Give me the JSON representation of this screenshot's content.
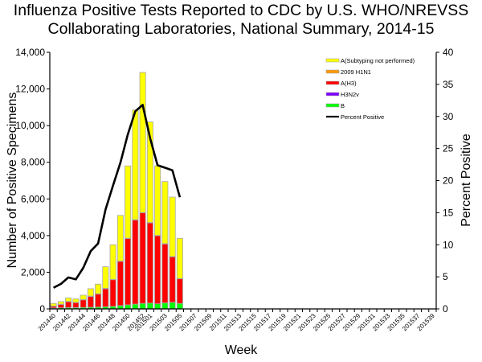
{
  "chart_data": {
    "type": "bar",
    "stacked": true,
    "title": "Influenza Positive Tests Reported to CDC by U.S. WHO/NREVSS Collaborating Laboratories, National Summary, 2014-15",
    "title_lines": [
      "Influenza Positive Tests Reported to CDC by U.S. WHO/NREVSS",
      "Collaborating Laboratories, National Summary, 2014-15"
    ],
    "xlabel": "Week",
    "ylabel": "Number of Positive Specimens",
    "y2label": "Percent Positive",
    "ylim": [
      0,
      14000
    ],
    "y2lim": [
      0,
      40
    ],
    "yticks": [
      0,
      2000,
      4000,
      6000,
      8000,
      10000,
      12000,
      14000
    ],
    "ytick_labels": [
      "0",
      "2,000",
      "4,000",
      "6,000",
      "8,000",
      "10,000",
      "12,000",
      "14,000"
    ],
    "y2ticks": [
      0,
      5,
      10,
      15,
      20,
      25,
      30,
      35,
      40
    ],
    "y2tick_labels": [
      "0",
      "5",
      "10",
      "15",
      "20",
      "25",
      "30",
      "35",
      "40"
    ],
    "grid": false,
    "legend_position": "top-right",
    "categories": [
      "201440",
      "201441",
      "201442",
      "201443",
      "201444",
      "201445",
      "201446",
      "201447",
      "201448",
      "201449",
      "201450",
      "201451",
      "201452",
      "201501",
      "201502",
      "201503",
      "201504",
      "201505",
      "201506",
      "201507",
      "201508",
      "201509",
      "201510",
      "201511",
      "201512",
      "201513",
      "201514",
      "201515",
      "201516",
      "201517",
      "201518",
      "201519",
      "201520",
      "201521",
      "201522",
      "201523",
      "201524",
      "201525",
      "201526",
      "201527",
      "201528",
      "201529",
      "201530",
      "201531",
      "201532",
      "201533",
      "201534",
      "201535",
      "201536",
      "201537",
      "201538",
      "201539"
    ],
    "xtick_labels": [
      "201440",
      "201442",
      "201444",
      "201446",
      "201448",
      "201450",
      "201452",
      "201501",
      "201503",
      "201505",
      "201507",
      "201509",
      "201511",
      "201513",
      "201515",
      "201517",
      "201519",
      "201521",
      "201523",
      "201525",
      "201527",
      "201529",
      "201531",
      "201533",
      "201535",
      "201537",
      "201539"
    ],
    "series": [
      {
        "name": "B",
        "kind": "bar",
        "color": "#00ff00",
        "values": [
          50,
          60,
          70,
          70,
          80,
          90,
          100,
          120,
          140,
          180,
          220,
          260,
          300,
          320,
          280,
          330,
          360,
          300
        ]
      },
      {
        "name": "H3N2v",
        "kind": "bar",
        "color": "#7f00ff",
        "values": [
          0,
          0,
          0,
          0,
          0,
          0,
          0,
          0,
          0,
          0,
          0,
          0,
          0,
          0,
          0,
          0,
          0,
          0
        ]
      },
      {
        "name": "A(H3)",
        "kind": "bar",
        "color": "#ff0000",
        "values": [
          100,
          190,
          330,
          280,
          420,
          600,
          720,
          990,
          1460,
          2420,
          3630,
          4600,
          4950,
          4380,
          3720,
          3220,
          2490,
          1350
        ]
      },
      {
        "name": "2009 H1N1",
        "kind": "bar",
        "color": "#ff9900",
        "values": [
          10,
          10,
          10,
          10,
          10,
          10,
          10,
          10,
          10,
          10,
          10,
          10,
          10,
          10,
          10,
          10,
          10,
          10
        ]
      },
      {
        "name": "A(Subtyping not performed)",
        "kind": "bar",
        "color": "#ffff00",
        "values": [
          140,
          140,
          190,
          190,
          240,
          400,
          520,
          1180,
          1890,
          2490,
          3940,
          5980,
          7640,
          5490,
          3790,
          3390,
          3240,
          2190
        ]
      },
      {
        "name": "Percent Positive",
        "kind": "line",
        "axis": "right",
        "color": "#000000",
        "values": [
          3.3,
          3.9,
          4.9,
          4.6,
          6.4,
          9.0,
          10.2,
          15.5,
          19.2,
          22.8,
          27.2,
          30.8,
          31.8,
          26.6,
          22.4,
          22.0,
          21.6,
          17.4
        ]
      }
    ]
  },
  "legend": [
    {
      "label": "A(Subtyping not performed)",
      "color": "#ffff00",
      "kind": "bar"
    },
    {
      "label": "2009 H1N1",
      "color": "#ff9900",
      "kind": "bar"
    },
    {
      "label": "A(H3)",
      "color": "#ff0000",
      "kind": "bar"
    },
    {
      "label": "H3N2v",
      "color": "#7f00ff",
      "kind": "bar"
    },
    {
      "label": "B",
      "color": "#00ff00",
      "kind": "bar"
    },
    {
      "label": "Percent Positive",
      "color": "#000000",
      "kind": "line"
    }
  ]
}
